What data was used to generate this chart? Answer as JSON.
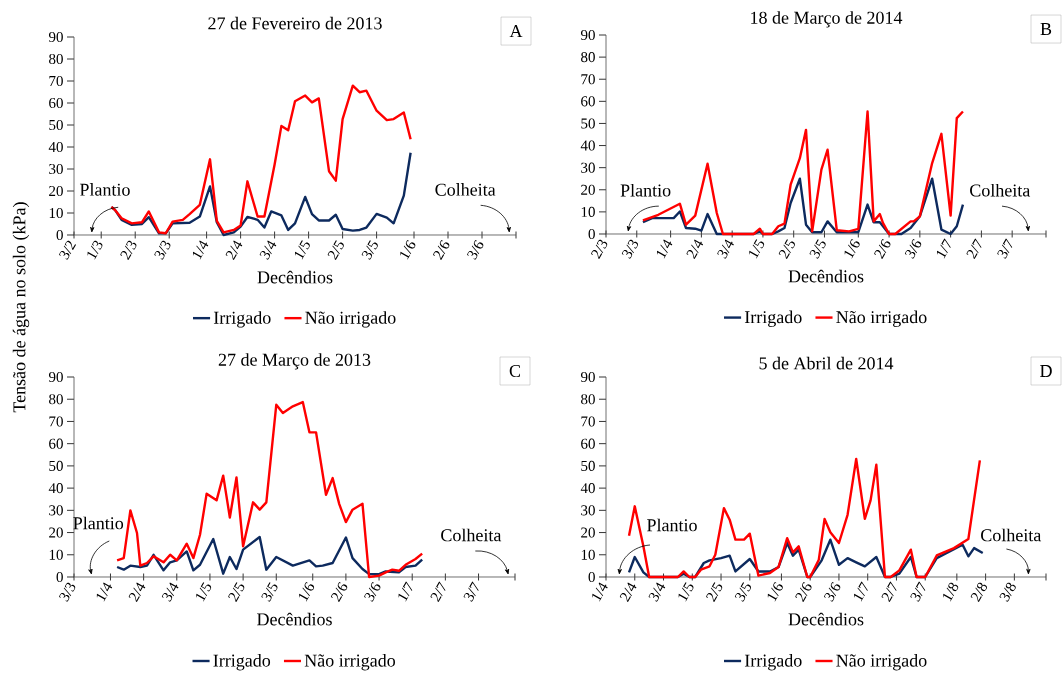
{
  "chart_data": [
    {
      "type": "line",
      "title": "27 de Fevereiro de 2013",
      "xlabel": "Decêndios",
      "ylabel": "Tensão de água no solo (kPa)",
      "legend": "bottom",
      "annotations": [
        "Plantio",
        "Colheita",
        "A"
      ],
      "xlim": [
        "2013-02-21",
        "2013-07-01"
      ],
      "xticks": [
        {
          "value": "2013-02-21",
          "label": "3/2"
        },
        {
          "value": "2013-03-01",
          "label": "1/3"
        },
        {
          "value": "2013-03-11",
          "label": "2/3"
        },
        {
          "value": "2013-03-21",
          "label": "3/3"
        },
        {
          "value": "2013-04-01",
          "label": "1/4"
        },
        {
          "value": "2013-04-11",
          "label": "2/4"
        },
        {
          "value": "2013-04-21",
          "label": "3/4"
        },
        {
          "value": "2013-05-01",
          "label": "1/5"
        },
        {
          "value": "2013-05-11",
          "label": "2/5"
        },
        {
          "value": "2013-05-21",
          "label": "3/5"
        },
        {
          "value": "2013-06-01",
          "label": "1/6"
        },
        {
          "value": "2013-06-11",
          "label": "2/6"
        },
        {
          "value": "2013-06-21",
          "label": "3/6"
        },
        {
          "value": "2013-07-01",
          "label": null
        }
      ],
      "ylim": [
        0,
        90
      ],
      "yticks": [
        0,
        10,
        20,
        30,
        40,
        50,
        60,
        70,
        80,
        90
      ],
      "series": [
        {
          "name": "Irrigado",
          "color": "#0d2a5e",
          "x": [
            "2013-03-04",
            "2013-03-05",
            "2013-03-07",
            "2013-03-10",
            "2013-03-13",
            "2013-03-15",
            "2013-03-18",
            "2013-03-20",
            "2013-03-22",
            "2013-03-27",
            "2013-03-30",
            "2013-04-02",
            "2013-04-04",
            "2013-04-06",
            "2013-04-09",
            "2013-04-11",
            "2013-04-13",
            "2013-04-16",
            "2013-04-18",
            "2013-04-20",
            "2013-04-23",
            "2013-04-25",
            "2013-04-27",
            "2013-04-30",
            "2013-05-02",
            "2013-05-04",
            "2013-05-07",
            "2013-05-09",
            "2013-05-11",
            "2013-05-14",
            "2013-05-16",
            "2013-05-18",
            "2013-05-21",
            "2013-05-24",
            "2013-05-26",
            "2013-05-29",
            "2013-05-31"
          ],
          "values": [
            12.7,
            11.5,
            6.9,
            4.6,
            5.0,
            8.1,
            0.8,
            0.8,
            5.3,
            5.6,
            8.4,
            22.1,
            5.8,
            0,
            1.2,
            3.8,
            8.2,
            6.9,
            3.4,
            10.7,
            8.9,
            2.3,
            5.3,
            17.3,
            9.5,
            6.6,
            6.6,
            9.2,
            2.7,
            2.0,
            2.3,
            3.4,
            9.6,
            7.9,
            5.3,
            17.9,
            37.4
          ]
        },
        {
          "name": "Não irrigado",
          "color": "#ff0000",
          "x": [
            "2013-03-04",
            "2013-03-05",
            "2013-03-07",
            "2013-03-10",
            "2013-03-13",
            "2013-03-15",
            "2013-03-18",
            "2013-03-20",
            "2013-03-22",
            "2013-03-25",
            "2013-03-27",
            "2013-03-30",
            "2013-04-02",
            "2013-04-04",
            "2013-04-06",
            "2013-04-09",
            "2013-04-11",
            "2013-04-13",
            "2013-04-16",
            "2013-04-18",
            "2013-04-21",
            "2013-04-23",
            "2013-04-25",
            "2013-04-27",
            "2013-04-30",
            "2013-05-02",
            "2013-05-04",
            "2013-05-07",
            "2013-05-09",
            "2013-05-11",
            "2013-05-14",
            "2013-05-16",
            "2013-05-18",
            "2013-05-21",
            "2013-05-24",
            "2013-05-26",
            "2013-05-29",
            "2013-05-31"
          ],
          "values": [
            12.7,
            11.5,
            7.6,
            5.3,
            5.8,
            10.7,
            1.2,
            0.8,
            6.1,
            6.9,
            9.5,
            13.7,
            34.4,
            6.4,
            1.2,
            2.3,
            4.3,
            24.4,
            8.4,
            8.4,
            32,
            49.6,
            47.6,
            60.8,
            63.4,
            60.3,
            62.1,
            29,
            24.7,
            52.7,
            67.9,
            64.9,
            65.6,
            56.5,
            52.2,
            52.7,
            55.7,
            43.5
          ]
        }
      ]
    },
    {
      "type": "line",
      "title": "18 de Março de 2014",
      "xlabel": "Decêndios",
      "legend": "bottom",
      "annotations": [
        "Plantio",
        "Colheita",
        "B"
      ],
      "xlim": [
        "2014-03-11",
        "2014-08-01"
      ],
      "xticks": [
        {
          "value": "2014-03-11",
          "label": "2/3"
        },
        {
          "value": "2014-03-21",
          "label": "3/3"
        },
        {
          "value": "2014-04-01",
          "label": "1/4"
        },
        {
          "value": "2014-04-11",
          "label": "2/4"
        },
        {
          "value": "2014-04-21",
          "label": "3/4"
        },
        {
          "value": "2014-05-01",
          "label": "1/5"
        },
        {
          "value": "2014-05-11",
          "label": "2/5"
        },
        {
          "value": "2014-05-21",
          "label": "3/5"
        },
        {
          "value": "2014-06-01",
          "label": "1/6"
        },
        {
          "value": "2014-06-11",
          "label": "2/6"
        },
        {
          "value": "2014-06-21",
          "label": "3/6"
        },
        {
          "value": "2014-07-01",
          "label": "1/7"
        },
        {
          "value": "2014-07-11",
          "label": "2/7"
        },
        {
          "value": "2014-07-21",
          "label": "3/7"
        },
        {
          "value": "2014-08-01",
          "label": null
        }
      ],
      "ylim": [
        0,
        90
      ],
      "yticks": [
        0,
        10,
        20,
        30,
        40,
        50,
        60,
        70,
        80,
        90
      ],
      "series": [
        {
          "name": "Irrigado",
          "color": "#0d2a5e",
          "x": [
            "2014-03-23",
            "2014-03-26",
            "2014-04-02",
            "2014-04-04",
            "2014-04-06",
            "2014-04-09",
            "2014-04-11",
            "2014-04-13",
            "2014-04-16",
            "2014-04-28",
            "2014-04-30",
            "2014-05-01",
            "2014-05-04",
            "2014-05-06",
            "2014-05-08",
            "2014-05-10",
            "2014-05-13",
            "2014-05-15",
            "2014-05-17",
            "2014-05-20",
            "2014-05-22",
            "2014-05-25",
            "2014-06-01",
            "2014-06-04",
            "2014-06-06",
            "2014-06-08",
            "2014-06-11",
            "2014-06-15",
            "2014-06-18",
            "2014-06-21",
            "2014-06-25",
            "2014-06-28",
            "2014-07-01",
            "2014-07-03",
            "2014-07-05"
          ],
          "values": [
            5.4,
            7.2,
            7.2,
            10.2,
            2.7,
            2.4,
            1.5,
            9.0,
            0,
            0,
            1.2,
            0,
            0,
            1.2,
            2.7,
            14,
            25,
            4.2,
            0.8,
            0.8,
            5.7,
            0.8,
            0.8,
            13.3,
            5.3,
            5.3,
            0,
            0,
            2.7,
            8.0,
            25,
            2.0,
            0,
            3.5,
            13.3
          ]
        },
        {
          "name": "Não irrigado",
          "color": "#ff0000",
          "x": [
            "2014-03-23",
            "2014-03-28",
            "2014-04-04",
            "2014-04-06",
            "2014-04-09",
            "2014-04-13",
            "2014-04-16",
            "2014-04-18",
            "2014-04-28",
            "2014-04-30",
            "2014-05-01",
            "2014-05-04",
            "2014-05-06",
            "2014-05-08",
            "2014-05-10",
            "2014-05-13",
            "2014-05-15",
            "2014-05-17",
            "2014-05-20",
            "2014-05-22",
            "2014-05-25",
            "2014-05-29",
            "2014-06-01",
            "2014-06-04",
            "2014-06-06",
            "2014-06-08",
            "2014-06-09",
            "2014-06-11",
            "2014-06-13",
            "2014-06-18",
            "2014-06-19",
            "2014-06-21",
            "2014-06-25",
            "2014-06-28",
            "2014-07-01",
            "2014-07-03",
            "2014-07-05"
          ],
          "values": [
            6.2,
            8.7,
            13.7,
            4.2,
            8.3,
            31.8,
            9.5,
            0,
            0,
            2.4,
            0,
            0,
            3.5,
            4.7,
            22.3,
            34.3,
            47.1,
            1.2,
            29.1,
            38.1,
            1.7,
            1.2,
            2.3,
            55.4,
            5.7,
            9.0,
            5.0,
            0,
            0,
            5.7,
            5.7,
            8.0,
            32.1,
            45.3,
            8.3,
            52.4,
            55.4
          ]
        }
      ]
    },
    {
      "type": "line",
      "title": "27 de Março de 2013",
      "xlabel": "Decêndios",
      "legend": "bottom",
      "annotations": [
        "Plantio",
        "Colheita",
        "C"
      ],
      "xlim": [
        "2013-03-21",
        "2013-08-01"
      ],
      "xticks": [
        {
          "value": "2013-03-21",
          "label": "3/3"
        },
        {
          "value": "2013-04-01",
          "label": "1/4"
        },
        {
          "value": "2013-04-11",
          "label": "2/4"
        },
        {
          "value": "2013-04-21",
          "label": "3/4"
        },
        {
          "value": "2013-05-01",
          "label": "1/5"
        },
        {
          "value": "2013-05-11",
          "label": "2/5"
        },
        {
          "value": "2013-05-21",
          "label": "3/5"
        },
        {
          "value": "2013-06-01",
          "label": "1/6"
        },
        {
          "value": "2013-06-11",
          "label": "2/6"
        },
        {
          "value": "2013-06-21",
          "label": "3/6"
        },
        {
          "value": "2013-07-01",
          "label": "1/7"
        },
        {
          "value": "2013-07-11",
          "label": "2/7"
        },
        {
          "value": "2013-07-21",
          "label": "3/7"
        },
        {
          "value": "2013-08-01",
          "label": null
        }
      ],
      "ylim": [
        0,
        90
      ],
      "yticks": [
        0,
        10,
        20,
        30,
        40,
        50,
        60,
        70,
        80,
        90
      ],
      "series": [
        {
          "name": "Irrigado",
          "color": "#0d2a5e",
          "x": [
            "2013-04-03",
            "2013-04-05",
            "2013-04-07",
            "2013-04-10",
            "2013-04-12",
            "2013-04-14",
            "2013-04-17",
            "2013-04-19",
            "2013-04-21",
            "2013-04-24",
            "2013-04-26",
            "2013-04-28",
            "2013-05-02",
            "2013-05-05",
            "2013-05-07",
            "2013-05-09",
            "2013-05-11",
            "2013-05-16",
            "2013-05-18",
            "2013-05-21",
            "2013-05-26",
            "2013-05-31",
            "2013-06-02",
            "2013-06-04",
            "2013-06-07",
            "2013-06-11",
            "2013-06-13",
            "2013-06-16",
            "2013-06-18",
            "2013-06-21",
            "2013-06-23",
            "2013-06-27",
            "2013-06-29",
            "2013-07-02",
            "2013-07-04"
          ],
          "values": [
            4.5,
            3.3,
            5.1,
            4.5,
            5.1,
            10,
            3.0,
            6.6,
            7.5,
            11.5,
            3.0,
            5.5,
            17.1,
            1.5,
            9.0,
            3.6,
            12.3,
            18,
            3.3,
            9.0,
            5.1,
            7.5,
            4.8,
            5.1,
            6.3,
            17.8,
            8.5,
            3.6,
            1.3,
            1.3,
            2.5,
            2.1,
            4.5,
            5.1,
            7.8
          ]
        },
        {
          "name": "Não irrigado",
          "color": "#ff0000",
          "x": [
            "2013-04-03",
            "2013-04-05",
            "2013-04-07",
            "2013-04-09",
            "2013-04-10",
            "2013-04-12",
            "2013-04-14",
            "2013-04-17",
            "2013-04-19",
            "2013-04-21",
            "2013-04-24",
            "2013-04-26",
            "2013-04-28",
            "2013-04-30",
            "2013-05-03",
            "2013-05-05",
            "2013-05-07",
            "2013-05-09",
            "2013-05-11",
            "2013-05-14",
            "2013-05-16",
            "2013-05-18",
            "2013-05-21",
            "2013-05-23",
            "2013-05-26",
            "2013-05-29",
            "2013-05-31",
            "2013-06-02",
            "2013-06-05",
            "2013-06-07",
            "2013-06-09",
            "2013-06-11",
            "2013-06-13",
            "2013-06-16",
            "2013-06-18",
            "2013-06-21",
            "2013-06-23",
            "2013-06-25",
            "2013-06-27",
            "2013-06-29",
            "2013-07-02",
            "2013-07-04"
          ],
          "values": [
            7.5,
            8.5,
            30,
            19.8,
            5.1,
            6.3,
            9.3,
            6.6,
            10,
            7.5,
            15,
            8.5,
            19,
            37.5,
            34.5,
            45.6,
            26.8,
            44.8,
            13.8,
            33.6,
            30.3,
            33.6,
            77.5,
            73.8,
            76.8,
            78.7,
            65.1,
            65.1,
            37,
            44.5,
            32.8,
            24.7,
            30.3,
            33,
            0,
            0.6,
            2.1,
            3.3,
            2.8,
            5.5,
            8.1,
            10.5
          ]
        }
      ]
    },
    {
      "type": "line",
      "title": "5 de Abril de 2014",
      "xlabel": "Decêndios",
      "legend": "bottom",
      "annotations": [
        "Plantio",
        "Colheita",
        "D"
      ],
      "xlim": [
        "2014-04-01",
        "2014-09-01"
      ],
      "xticks": [
        {
          "value": "2014-04-01",
          "label": "1/4"
        },
        {
          "value": "2014-04-11",
          "label": "2/4"
        },
        {
          "value": "2014-04-21",
          "label": "3/4"
        },
        {
          "value": "2014-05-01",
          "label": "1/5"
        },
        {
          "value": "2014-05-11",
          "label": "2/5"
        },
        {
          "value": "2014-05-21",
          "label": "3/5"
        },
        {
          "value": "2014-06-01",
          "label": "1/6"
        },
        {
          "value": "2014-06-11",
          "label": "2/6"
        },
        {
          "value": "2014-06-21",
          "label": "3/6"
        },
        {
          "value": "2014-07-01",
          "label": "1/7"
        },
        {
          "value": "2014-07-11",
          "label": "2/7"
        },
        {
          "value": "2014-07-21",
          "label": "3/7"
        },
        {
          "value": "2014-08-01",
          "label": "1/8"
        },
        {
          "value": "2014-08-11",
          "label": "2/8"
        },
        {
          "value": "2014-08-21",
          "label": "3/8"
        },
        {
          "value": "2014-09-01",
          "label": null
        }
      ],
      "ylim": [
        0,
        90
      ],
      "yticks": [
        0,
        10,
        20,
        30,
        40,
        50,
        60,
        70,
        80,
        90
      ],
      "series": [
        {
          "name": "Irrigado",
          "color": "#0d2a5e",
          "x": [
            "2014-04-09",
            "2014-04-11",
            "2014-04-14",
            "2014-04-16",
            "2014-04-26",
            "2014-04-28",
            "2014-04-30",
            "2014-05-02",
            "2014-05-05",
            "2014-05-07",
            "2014-05-11",
            "2014-05-14",
            "2014-05-16",
            "2014-05-21",
            "2014-05-24",
            "2014-05-28",
            "2014-05-31",
            "2014-06-03",
            "2014-06-05",
            "2014-06-07",
            "2014-06-10",
            "2014-06-11",
            "2014-06-15",
            "2014-06-18",
            "2014-06-21",
            "2014-06-24",
            "2014-06-27",
            "2014-06-30",
            "2014-07-04",
            "2014-07-07",
            "2014-07-09",
            "2014-07-12",
            "2014-07-16",
            "2014-07-18",
            "2014-07-21",
            "2014-07-25",
            "2014-08-03",
            "2014-08-05",
            "2014-08-07",
            "2014-08-10"
          ],
          "values": [
            2.1,
            9.0,
            2.1,
            0,
            0,
            1.5,
            0,
            0,
            6.3,
            7.5,
            8.5,
            9.6,
            2.5,
            8.1,
            2.5,
            2.5,
            4.5,
            15.3,
            9.6,
            12.3,
            0,
            0,
            7.5,
            16.8,
            5.5,
            8.5,
            6.6,
            4.8,
            9.0,
            0,
            0,
            1.5,
            9.0,
            0,
            0,
            8.5,
            14.5,
            9.3,
            13,
            10.8
          ]
        },
        {
          "name": "Não irrigado",
          "color": "#ff0000",
          "x": [
            "2014-04-09",
            "2014-04-11",
            "2014-04-14",
            "2014-04-16",
            "2014-04-26",
            "2014-04-28",
            "2014-04-30",
            "2014-05-02",
            "2014-05-04",
            "2014-05-07",
            "2014-05-09",
            "2014-05-12",
            "2014-05-14",
            "2014-05-16",
            "2014-05-19",
            "2014-05-21",
            "2014-05-24",
            "2014-05-28",
            "2014-05-31",
            "2014-06-03",
            "2014-06-05",
            "2014-06-07",
            "2014-06-10",
            "2014-06-11",
            "2014-06-14",
            "2014-06-16",
            "2014-06-18",
            "2014-06-21",
            "2014-06-24",
            "2014-06-27",
            "2014-06-30",
            "2014-07-02",
            "2014-07-04",
            "2014-07-07",
            "2014-07-09",
            "2014-07-12",
            "2014-07-16",
            "2014-07-18",
            "2014-07-21",
            "2014-07-25",
            "2014-07-31",
            "2014-08-05",
            "2014-08-09"
          ],
          "values": [
            18.6,
            31.8,
            13.8,
            0,
            0,
            2.5,
            0,
            0,
            3.3,
            4.8,
            10,
            31,
            25.8,
            16.8,
            16.8,
            19.5,
            0.6,
            1.8,
            4.5,
            17.5,
            11.1,
            13.8,
            0,
            0,
            7.8,
            26.1,
            20.1,
            15.3,
            28,
            53.1,
            26.2,
            34.5,
            50.5,
            0,
            0,
            3.0,
            12.3,
            0,
            0,
            9.7,
            13,
            17.1,
            52.5
          ]
        }
      ]
    }
  ]
}
